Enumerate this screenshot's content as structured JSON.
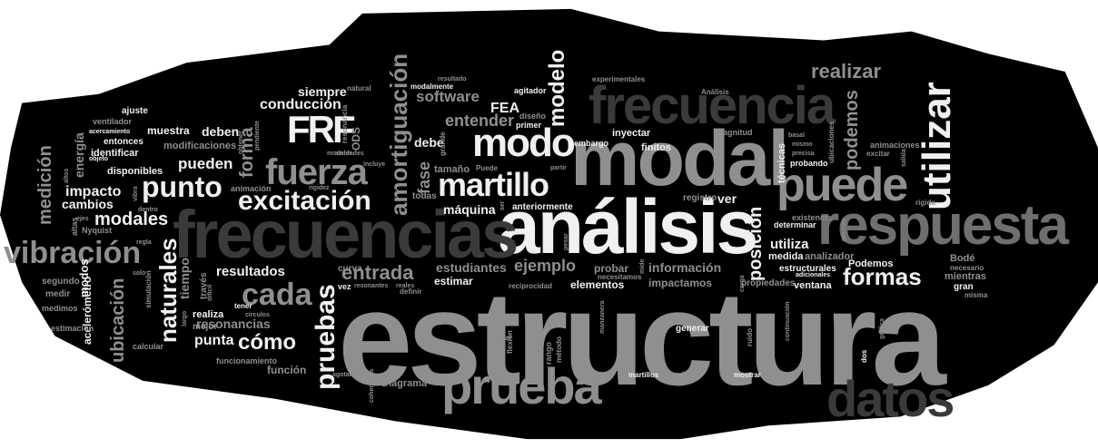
{
  "cloud": {
    "words": [
      {
        "t": "estructura",
        "s": 148,
        "c": "#8f8f8f"
      },
      {
        "t": "análisis",
        "s": 84,
        "c": "#f0f0f0"
      },
      {
        "t": "modal",
        "s": 86,
        "c": "#8f8f8f"
      },
      {
        "t": "frecuencias",
        "s": 74,
        "c": "#3a3a3a"
      },
      {
        "t": "frecuencia",
        "s": 58,
        "c": "#3a3a3a"
      },
      {
        "t": "respuesta",
        "s": 62,
        "c": "#6f6f6f"
      },
      {
        "t": "prueba",
        "s": 56,
        "c": "#8f8f8f"
      },
      {
        "t": "datos",
        "s": 56,
        "c": "#3a3a3a"
      },
      {
        "t": "puede",
        "s": 52,
        "c": "#8f8f8f"
      },
      {
        "t": "utilizar",
        "s": 44,
        "c": "#f0f0f0"
      },
      {
        "t": "modo",
        "s": 44,
        "c": "#f0f0f0"
      },
      {
        "t": "FRF",
        "s": 42,
        "c": "#f0f0f0"
      },
      {
        "t": "fuerza",
        "s": 40,
        "c": "#8f8f8f"
      },
      {
        "t": "martillo",
        "s": 36,
        "c": "#f0f0f0"
      },
      {
        "t": "excitación",
        "s": 30,
        "c": "#f0f0f0"
      },
      {
        "t": "punto",
        "s": 32,
        "c": "#f0f0f0"
      },
      {
        "t": "cada",
        "s": 34,
        "c": "#8f8f8f"
      },
      {
        "t": "pruebas",
        "s": 30,
        "c": "#f0f0f0"
      },
      {
        "t": "vibración",
        "s": 34,
        "c": "#8f8f8f"
      },
      {
        "t": "amortiguación",
        "s": 26,
        "c": "#8f8f8f"
      },
      {
        "t": "modelo",
        "s": 24,
        "c": "#f0f0f0"
      },
      {
        "t": "formas",
        "s": 26,
        "c": "#f0f0f0"
      },
      {
        "t": "naturales",
        "s": 26,
        "c": "#f0f0f0"
      },
      {
        "t": "modales",
        "s": 20,
        "c": "#f0f0f0"
      },
      {
        "t": "entrada",
        "s": 22,
        "c": "#8f8f8f"
      },
      {
        "t": "realizar",
        "s": 22,
        "c": "#8f8f8f"
      },
      {
        "t": "cómo",
        "s": 24,
        "c": "#f0f0f0"
      },
      {
        "t": "posición",
        "s": 20,
        "c": "#f0f0f0"
      },
      {
        "t": "podemos",
        "s": 20,
        "c": "#8f8f8f"
      },
      {
        "t": "entender",
        "s": 18,
        "c": "#8f8f8f"
      },
      {
        "t": "ejemplo",
        "s": 18,
        "c": "#8f8f8f"
      },
      {
        "t": "forma",
        "s": 20,
        "c": "#8f8f8f"
      },
      {
        "t": "fase",
        "s": 18,
        "c": "#8f8f8f"
      },
      {
        "t": "pueden",
        "s": 17,
        "c": "#f0f0f0"
      },
      {
        "t": "resultados",
        "s": 15,
        "c": "#f0f0f0"
      },
      {
        "t": "ubicación",
        "s": 20,
        "c": "#8f8f8f"
      },
      {
        "t": "medición",
        "s": 20,
        "c": "#8f8f8f"
      },
      {
        "t": "software",
        "s": 17,
        "c": "#8f8f8f"
      },
      {
        "t": "conducción",
        "s": 16,
        "c": "#f0f0f0"
      },
      {
        "t": "máquina",
        "s": 14,
        "c": "#f0f0f0"
      },
      {
        "t": "punta",
        "s": 16,
        "c": "#f0f0f0"
      },
      {
        "t": "utiliza",
        "s": 15,
        "c": "#f0f0f0"
      },
      {
        "t": "información",
        "s": 14,
        "c": "#8f8f8f"
      },
      {
        "t": "impacto",
        "s": 16,
        "c": "#f0f0f0"
      },
      {
        "t": "resonancias",
        "s": 14,
        "c": "#8f8f8f"
      },
      {
        "t": "energía",
        "s": 14,
        "c": "#8f8f8f"
      },
      {
        "t": "siempre",
        "s": 14,
        "c": "#f0f0f0"
      },
      {
        "t": "estudiantes",
        "s": 14,
        "c": "#8f8f8f"
      },
      {
        "t": "cambios",
        "s": 14,
        "c": "#f0f0f0"
      },
      {
        "t": "debe",
        "s": 14,
        "c": "#f0f0f0"
      },
      {
        "t": "ver",
        "s": 14,
        "c": "#f0f0f0"
      },
      {
        "t": "FEA",
        "s": 16,
        "c": "#f0f0f0"
      },
      {
        "t": "deben",
        "s": 14,
        "c": "#f0f0f0"
      },
      {
        "t": "muestra",
        "s": 12,
        "c": "#f0f0f0"
      },
      {
        "t": "estimar",
        "s": 12,
        "c": "#f0f0f0"
      },
      {
        "t": "tiempo",
        "s": 14,
        "c": "#8f8f8f"
      },
      {
        "t": "acelerómetro",
        "s": 12,
        "c": "#f0f0f0"
      },
      {
        "t": "modos",
        "s": 13,
        "c": "#f0f0f0"
      },
      {
        "t": "elementos",
        "s": 12,
        "c": "#f0f0f0"
      },
      {
        "t": "probar",
        "s": 12,
        "c": "#8f8f8f"
      },
      {
        "t": "impactamos",
        "s": 12,
        "c": "#8f8f8f"
      },
      {
        "t": "función",
        "s": 12,
        "c": "#8f8f8f"
      },
      {
        "t": "técnicas",
        "s": 11,
        "c": "#f0f0f0"
      },
      {
        "t": "Diagrama",
        "s": 11,
        "c": "#8f8f8f"
      },
      {
        "t": "finitos",
        "s": 11,
        "c": "#f0f0f0"
      },
      {
        "t": "inyectar",
        "s": 11,
        "c": "#f0f0f0"
      },
      {
        "t": "disponibles",
        "s": 11,
        "c": "#f0f0f0"
      },
      {
        "t": "identificar",
        "s": 11,
        "c": "#f0f0f0"
      },
      {
        "t": "entonces",
        "s": 10,
        "c": "#f0f0f0"
      },
      {
        "t": "modificaciones",
        "s": 11,
        "c": "#8f8f8f"
      },
      {
        "t": "analizador",
        "s": 11,
        "c": "#8f8f8f"
      },
      {
        "t": "medida",
        "s": 11,
        "c": "#f0f0f0"
      },
      {
        "t": "ventana",
        "s": 11,
        "c": "#f0f0f0"
      },
      {
        "t": "Podemos",
        "s": 11,
        "c": "#f0f0f0"
      },
      {
        "t": "estructurales",
        "s": 10,
        "c": "#f0f0f0"
      },
      {
        "t": "propiedades",
        "s": 10,
        "c": "#8f8f8f"
      },
      {
        "t": "Bodé",
        "s": 11,
        "c": "#8f8f8f"
      },
      {
        "t": "mientras",
        "s": 11,
        "c": "#8f8f8f"
      },
      {
        "t": "gran",
        "s": 10,
        "c": "#f0f0f0"
      },
      {
        "t": "anteriormente",
        "s": 10,
        "c": "#f0f0f0"
      },
      {
        "t": "tamaño",
        "s": 11,
        "c": "#8f8f8f"
      },
      {
        "t": "todas",
        "s": 10,
        "c": "#8f8f8f"
      },
      {
        "t": "registro",
        "s": 10,
        "c": "#8f8f8f"
      },
      {
        "t": "generar",
        "s": 10,
        "c": "#f0f0f0"
      },
      {
        "t": "realiza",
        "s": 11,
        "c": "#f0f0f0"
      },
      {
        "t": "mejor",
        "s": 10,
        "c": "#8f8f8f"
      },
      {
        "t": "ajuste",
        "s": 10,
        "c": "#f0f0f0"
      },
      {
        "t": "ventilador",
        "s": 9,
        "c": "#8f8f8f"
      },
      {
        "t": "medir",
        "s": 10,
        "c": "#8f8f8f"
      },
      {
        "t": "segundo",
        "s": 10,
        "c": "#8f8f8f"
      },
      {
        "t": "medimos",
        "s": 9,
        "c": "#8f8f8f"
      },
      {
        "t": "estimación",
        "s": 9,
        "c": "#8f8f8f"
      },
      {
        "t": "Nyquist",
        "s": 9,
        "c": "#8f8f8f"
      },
      {
        "t": "altas",
        "s": 9,
        "c": "#8f8f8f"
      },
      {
        "t": "calcular",
        "s": 9,
        "c": "#8f8f8f"
      },
      {
        "t": "funcionamiento",
        "s": 9,
        "c": "#8f8f8f"
      },
      {
        "t": "agitador",
        "s": 9,
        "c": "#f0f0f0"
      },
      {
        "t": "primer",
        "s": 9,
        "c": "#f0f0f0"
      },
      {
        "t": "diseño",
        "s": 9,
        "c": "#8f8f8f"
      },
      {
        "t": "embargo",
        "s": 9,
        "c": "#f0f0f0"
      },
      {
        "t": "magnitud",
        "s": 9,
        "c": "#8f8f8f"
      },
      {
        "t": "animaciones",
        "s": 9,
        "c": "#8f8f8f"
      },
      {
        "t": "probando",
        "s": 9,
        "c": "#f0f0f0"
      },
      {
        "t": "excitar",
        "s": 8,
        "c": "#8f8f8f"
      },
      {
        "t": "determinar",
        "s": 9,
        "c": "#f0f0f0"
      },
      {
        "t": "existencia",
        "s": 9,
        "c": "#8f8f8f"
      },
      {
        "t": "rígida",
        "s": 8,
        "c": "#8f8f8f"
      },
      {
        "t": "necesario",
        "s": 8,
        "c": "#8f8f8f"
      },
      {
        "t": "misma",
        "s": 8,
        "c": "#8f8f8f"
      },
      {
        "t": "experimentales",
        "s": 8,
        "c": "#8f8f8f"
      },
      {
        "t": "Análisis",
        "s": 8,
        "c": "#8f8f8f"
      },
      {
        "t": "resultado",
        "s": 7,
        "c": "#8f8f8f"
      },
      {
        "t": "modalmente",
        "s": 8,
        "c": "#f0f0f0"
      },
      {
        "t": "animación",
        "s": 9,
        "c": "#8f8f8f"
      },
      {
        "t": "curva",
        "s": 10,
        "c": "#8f8f8f"
      },
      {
        "t": "vez",
        "s": 9,
        "c": "#f0f0f0"
      },
      {
        "t": "definir",
        "s": 8,
        "c": "#8f8f8f"
      },
      {
        "t": "necesitamos",
        "s": 8,
        "c": "#8f8f8f"
      },
      {
        "t": "recíprocidad",
        "s": 8,
        "c": "#8f8f8f"
      },
      {
        "t": "martillos",
        "s": 8,
        "c": "#f0f0f0"
      },
      {
        "t": "grados",
        "s": 7,
        "c": "#8f8f8f"
      },
      {
        "t": "mostrar",
        "s": 8,
        "c": "#f0f0f0"
      },
      {
        "t": "agotadoras",
        "s": 7,
        "c": "#8f8f8f"
      },
      {
        "t": "coherencia",
        "s": 7,
        "c": "#8f8f8f"
      },
      {
        "t": "rango",
        "s": 9,
        "c": "#8f8f8f"
      },
      {
        "t": "flexión",
        "s": 8,
        "c": "#8f8f8f"
      },
      {
        "t": "método",
        "s": 8,
        "c": "#8f8f8f"
      },
      {
        "t": "manzanera",
        "s": 7,
        "c": "#8f8f8f"
      },
      {
        "t": "ruido",
        "s": 8,
        "c": "#8f8f8f"
      },
      {
        "t": "gráfica",
        "s": 7,
        "c": "#8f8f8f"
      },
      {
        "t": "dos",
        "s": 8,
        "c": "#f0f0f0"
      },
      {
        "t": "ODS",
        "s": 12,
        "c": "#8f8f8f"
      },
      {
        "t": "resonancia",
        "s": 8,
        "c": "#8f8f8f"
      },
      {
        "t": "natural",
        "s": 8,
        "c": "#8f8f8f"
      },
      {
        "t": "grande",
        "s": 8,
        "c": "#8f8f8f"
      },
      {
        "t": "Puede",
        "s": 8,
        "c": "#8f8f8f"
      },
      {
        "t": "partir",
        "s": 7,
        "c": "#8f8f8f"
      },
      {
        "t": "ubicaciones",
        "s": 8,
        "c": "#8f8f8f"
      },
      {
        "t": "través",
        "s": 10,
        "c": "#8f8f8f"
      },
      {
        "t": "simulación",
        "s": 8,
        "c": "#8f8f8f"
      },
      {
        "t": "tener",
        "s": 8,
        "c": "#f0f0f0"
      },
      {
        "t": "círculos",
        "s": 7,
        "c": "#8f8f8f"
      },
      {
        "t": "objeto",
        "s": 7,
        "c": "#f0f0f0"
      },
      {
        "t": "unidades",
        "s": 7,
        "c": "#8f8f8f"
      },
      {
        "t": "incluye",
        "s": 7,
        "c": "#8f8f8f"
      },
      {
        "t": "rigidez",
        "s": 7,
        "c": "#8f8f8f"
      },
      {
        "t": "reales",
        "s": 7,
        "c": "#8f8f8f"
      },
      {
        "t": "resonantes",
        "s": 7,
        "c": "#8f8f8f"
      },
      {
        "t": "adicionales",
        "s": 7,
        "c": "#f0f0f0"
      },
      {
        "t": "continuación",
        "s": 7,
        "c": "#8f8f8f"
      },
      {
        "t": "carga",
        "s": 7,
        "c": "#8f8f8f"
      },
      {
        "t": "mide",
        "s": 7,
        "c": "#8f8f8f"
      },
      {
        "t": "permite",
        "s": 7,
        "c": "#8f8f8f"
      },
      {
        "t": "salida",
        "s": 7,
        "c": "#8f8f8f"
      },
      {
        "t": "precisa",
        "s": 7,
        "c": "#8f8f8f"
      },
      {
        "t": "mismo",
        "s": 7,
        "c": "#8f8f8f"
      },
      {
        "t": "basal",
        "s": 7,
        "c": "#8f8f8f"
      },
      {
        "t": "obtener",
        "s": 7,
        "c": "#8f8f8f"
      },
      {
        "t": "pendiente",
        "s": 7,
        "c": "#8f8f8f"
      },
      {
        "t": "modelar",
        "s": 7,
        "c": "#8f8f8f"
      },
      {
        "t": "difícil",
        "s": 7,
        "c": "#8f8f8f"
      },
      {
        "t": "solo",
        "s": 7,
        "c": "#8f8f8f"
      },
      {
        "t": "regla",
        "s": 7,
        "c": "#8f8f8f"
      },
      {
        "t": "dentro",
        "s": 7,
        "c": "#8f8f8f"
      },
      {
        "t": "ejes",
        "s": 7,
        "c": "#8f8f8f"
      },
      {
        "t": "vibra",
        "s": 7,
        "c": "#8f8f8f"
      },
      {
        "t": "altos",
        "s": 7,
        "c": "#8f8f8f"
      },
      {
        "t": "acercamiento",
        "s": 7,
        "c": "#f0f0f0"
      },
      {
        "t": "largo",
        "s": 7,
        "c": "#8f8f8f"
      },
      {
        "t": "usar",
        "s": 7,
        "c": "#8f8f8f"
      },
      {
        "t": "ser",
        "s": 7,
        "c": "#8f8f8f"
      },
      {
        "t": "pesar",
        "s": 7,
        "c": "#8f8f8f"
      }
    ]
  }
}
